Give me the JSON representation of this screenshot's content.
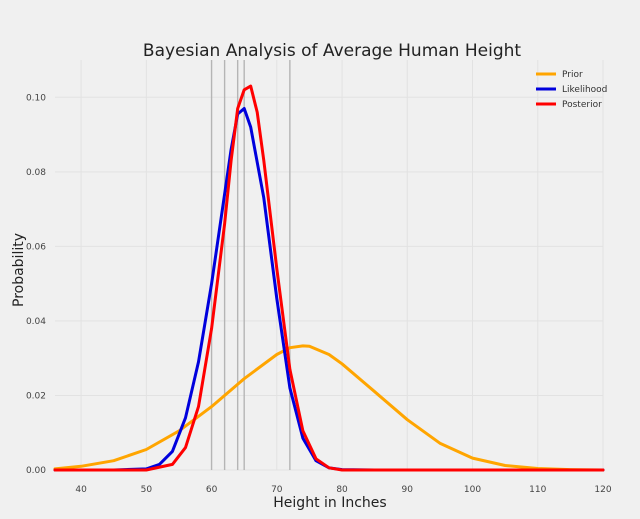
{
  "chart_data": {
    "type": "line",
    "title": "Bayesian Analysis of Average Human Height",
    "xlabel": "Height in Inches",
    "ylabel": "Probability",
    "xlim": [
      36,
      120
    ],
    "ylim": [
      0,
      0.11
    ],
    "xticks": [
      40,
      50,
      60,
      70,
      80,
      90,
      100,
      110,
      120
    ],
    "yticks": [
      0.0,
      0.02,
      0.04,
      0.06,
      0.08,
      0.1
    ],
    "ytick_labels": [
      "0.00",
      "0.02",
      "0.04",
      "0.06",
      "0.08",
      "0.10"
    ],
    "grid": true,
    "legend_position": "top-right",
    "vertical_lines": [
      60,
      62,
      64,
      65,
      72
    ],
    "series": [
      {
        "name": "Prior",
        "color": "#FFA500",
        "x": [
          36,
          40,
          45,
          50,
          55,
          60,
          65,
          70,
          72,
          74,
          75,
          78,
          80,
          85,
          90,
          95,
          100,
          105,
          110,
          115,
          120
        ],
        "y": [
          0.0003,
          0.001,
          0.0025,
          0.0055,
          0.0105,
          0.017,
          0.0245,
          0.031,
          0.0328,
          0.0333,
          0.0332,
          0.031,
          0.0285,
          0.021,
          0.0135,
          0.0072,
          0.0032,
          0.0012,
          0.0004,
          0.0001,
          0.0
        ]
      },
      {
        "name": "Likelihood",
        "color": "#0000DD",
        "x": [
          36,
          45,
          50,
          52,
          54,
          56,
          58,
          60,
          62,
          63,
          64,
          65,
          66,
          68,
          70,
          72,
          74,
          76,
          78,
          80,
          85,
          120
        ],
        "y": [
          0.0,
          0.0,
          0.0003,
          0.0015,
          0.005,
          0.014,
          0.029,
          0.05,
          0.074,
          0.086,
          0.0955,
          0.097,
          0.092,
          0.073,
          0.046,
          0.022,
          0.0085,
          0.0025,
          0.0006,
          0.0001,
          0.0,
          0.0
        ]
      },
      {
        "name": "Posterior",
        "color": "#FF0000",
        "x": [
          36,
          50,
          54,
          56,
          58,
          60,
          62,
          63,
          64,
          65,
          66,
          67,
          68,
          70,
          72,
          74,
          76,
          78,
          80,
          120
        ],
        "y": [
          0.0,
          0.0,
          0.0015,
          0.006,
          0.017,
          0.038,
          0.066,
          0.083,
          0.097,
          0.102,
          0.103,
          0.096,
          0.083,
          0.054,
          0.027,
          0.0105,
          0.003,
          0.0006,
          0.0,
          0.0
        ]
      }
    ]
  }
}
